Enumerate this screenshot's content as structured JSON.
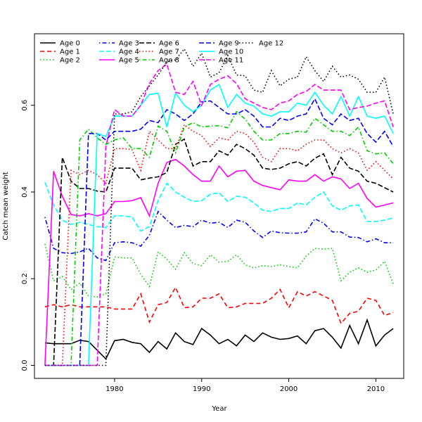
{
  "chart_data": {
    "type": "line",
    "xlabel": "Year",
    "ylabel": "Catch mean weight",
    "xlim": [
      1970.8,
      2013.2
    ],
    "ylim": [
      -0.03,
      0.765
    ],
    "xticks": [
      1980,
      1990,
      2000,
      2010
    ],
    "yticks": [
      0.0,
      0.2,
      0.4,
      0.6
    ],
    "legend_position": "top-left",
    "x": [
      1972,
      1973,
      1974,
      1975,
      1976,
      1977,
      1978,
      1979,
      1980,
      1981,
      1982,
      1983,
      1984,
      1985,
      1986,
      1987,
      1988,
      1989,
      1990,
      1991,
      1992,
      1993,
      1994,
      1995,
      1996,
      1997,
      1998,
      1999,
      2000,
      2001,
      2002,
      2003,
      2004,
      2005,
      2006,
      2007,
      2008,
      2009,
      2010,
      2011,
      2012
    ],
    "series": [
      {
        "name": "Age 0",
        "color": "#000000",
        "dash": "solid",
        "values": [
          0.052,
          0.05,
          0.05,
          0.05,
          0.058,
          0.055,
          0.035,
          0.015,
          0.057,
          0.06,
          0.053,
          0.05,
          0.03,
          0.055,
          0.038,
          0.075,
          0.055,
          0.048,
          0.085,
          0.07,
          0.05,
          0.06,
          0.045,
          0.07,
          0.055,
          0.075,
          0.065,
          0.06,
          0.062,
          0.068,
          0.05,
          0.08,
          0.085,
          0.065,
          0.04,
          0.092,
          0.05,
          0.105,
          0.045,
          0.07,
          0.085
        ]
      },
      {
        "name": "Age 1",
        "color": "#ff0000",
        "dash": "dashed",
        "values": [
          0.135,
          0.14,
          0.135,
          0.14,
          0.135,
          0.135,
          0.135,
          0.135,
          0.13,
          0.13,
          0.13,
          0.165,
          0.1,
          0.14,
          0.145,
          0.18,
          0.133,
          0.135,
          0.155,
          0.155,
          0.165,
          0.133,
          0.135,
          0.143,
          0.143,
          0.143,
          0.155,
          0.175,
          0.133,
          0.17,
          0.16,
          0.17,
          0.16,
          0.15,
          0.097,
          0.12,
          0.125,
          0.155,
          0.15,
          0.115,
          0.122
        ]
      },
      {
        "name": "Age 2",
        "color": "#00cd00",
        "dash": "dotted",
        "values": [
          0.28,
          0.195,
          0.205,
          0.175,
          0.19,
          0.16,
          0.158,
          0.165,
          0.25,
          0.248,
          0.248,
          0.21,
          0.182,
          0.262,
          0.245,
          0.222,
          0.26,
          0.235,
          0.23,
          0.255,
          0.238,
          0.24,
          0.255,
          0.232,
          0.225,
          0.23,
          0.228,
          0.232,
          0.228,
          0.225,
          0.252,
          0.27,
          0.268,
          0.27,
          0.195,
          0.215,
          0.225,
          0.215,
          0.22,
          0.24,
          0.188
        ]
      },
      {
        "name": "Age 3",
        "color": "#0000ff",
        "dash": "dashdot",
        "values": [
          0.342,
          0.27,
          0.26,
          0.258,
          0.262,
          0.27,
          0.248,
          0.242,
          0.283,
          0.285,
          0.283,
          0.275,
          0.3,
          0.355,
          0.335,
          0.318,
          0.323,
          0.32,
          0.335,
          0.328,
          0.33,
          0.318,
          0.335,
          0.33,
          0.31,
          0.295,
          0.31,
          0.306,
          0.305,
          0.305,
          0.308,
          0.338,
          0.328,
          0.308,
          0.308,
          0.296,
          0.295,
          0.285,
          0.292,
          0.283,
          0.283
        ]
      },
      {
        "name": "Age 4",
        "color": "#00ffff",
        "dash": "longdash",
        "values": [
          0.422,
          0.37,
          0.335,
          0.325,
          0.33,
          0.325,
          0.32,
          0.318,
          0.345,
          0.345,
          0.342,
          0.31,
          0.32,
          0.38,
          0.42,
          0.4,
          0.388,
          0.378,
          0.38,
          0.395,
          0.398,
          0.378,
          0.39,
          0.388,
          0.375,
          0.358,
          0.355,
          0.362,
          0.362,
          0.375,
          0.37,
          0.388,
          0.4,
          0.368,
          0.358,
          0.368,
          0.37,
          0.332,
          0.332,
          0.335,
          0.34
        ]
      },
      {
        "name": "Age 5",
        "color": "#ff00ff",
        "dash": "solid",
        "values": [
          0.0,
          0.448,
          0.39,
          0.348,
          0.345,
          0.35,
          0.345,
          0.35,
          0.378,
          0.378,
          0.38,
          0.387,
          0.345,
          0.42,
          0.468,
          0.475,
          0.46,
          0.44,
          0.425,
          0.425,
          0.46,
          0.435,
          0.448,
          0.45,
          0.425,
          0.415,
          0.41,
          0.405,
          0.428,
          0.425,
          0.425,
          0.44,
          0.425,
          0.435,
          0.43,
          0.408,
          0.42,
          0.385,
          0.365,
          0.37,
          0.375
        ]
      },
      {
        "name": "Age 6",
        "color": "#000000",
        "dash": "longdash",
        "values": [
          0.0,
          0.0,
          0.48,
          0.425,
          0.408,
          0.408,
          0.402,
          0.4,
          0.455,
          0.455,
          0.455,
          0.428,
          0.432,
          0.435,
          0.445,
          0.51,
          0.522,
          0.46,
          0.47,
          0.47,
          0.495,
          0.485,
          0.51,
          0.5,
          0.485,
          0.455,
          0.452,
          0.455,
          0.465,
          0.47,
          0.46,
          0.478,
          0.488,
          0.44,
          0.48,
          0.455,
          0.448,
          0.425,
          0.42,
          0.41,
          0.4
        ]
      },
      {
        "name": "Age 7",
        "color": "#ff0000",
        "dash": "dotted",
        "values": [
          0.0,
          0.0,
          0.0,
          0.45,
          0.44,
          0.45,
          0.44,
          0.42,
          0.5,
          0.5,
          0.498,
          0.45,
          0.54,
          0.52,
          0.5,
          0.5,
          0.555,
          0.54,
          0.53,
          0.505,
          0.525,
          0.52,
          0.54,
          0.535,
          0.515,
          0.48,
          0.47,
          0.5,
          0.5,
          0.495,
          0.51,
          0.52,
          0.52,
          0.5,
          0.49,
          0.5,
          0.49,
          0.45,
          0.47,
          0.45,
          0.43
        ]
      },
      {
        "name": "Age 8",
        "color": "#00cd00",
        "dash": "dashdot",
        "values": [
          0.0,
          0.0,
          0.0,
          0.0,
          0.52,
          0.545,
          0.525,
          0.51,
          0.52,
          0.525,
          0.5,
          0.5,
          0.48,
          0.552,
          0.54,
          0.49,
          0.55,
          0.56,
          0.55,
          0.552,
          0.553,
          0.548,
          0.585,
          0.568,
          0.54,
          0.52,
          0.52,
          0.535,
          0.535,
          0.54,
          0.538,
          0.57,
          0.555,
          0.54,
          0.54,
          0.53,
          0.55,
          0.495,
          0.488,
          0.49,
          0.465
        ]
      },
      {
        "name": "Age 9",
        "color": "#0000ff",
        "dash": "longdash",
        "values": [
          0.0,
          0.0,
          0.0,
          0.0,
          0.0,
          0.535,
          0.535,
          0.52,
          0.54,
          0.54,
          0.54,
          0.545,
          0.565,
          0.56,
          0.59,
          0.58,
          0.565,
          0.58,
          0.608,
          0.61,
          0.595,
          0.58,
          0.58,
          0.59,
          0.575,
          0.55,
          0.55,
          0.57,
          0.565,
          0.575,
          0.58,
          0.615,
          0.57,
          0.555,
          0.58,
          0.565,
          0.57,
          0.535,
          0.515,
          0.54,
          0.505
        ]
      },
      {
        "name": "Age 10",
        "color": "#00ffff",
        "dash": "solid",
        "values": [
          0.0,
          0.0,
          0.0,
          0.0,
          0.0,
          0.0,
          0.535,
          0.528,
          0.575,
          0.575,
          0.575,
          0.6,
          0.625,
          0.628,
          0.55,
          0.628,
          0.6,
          0.585,
          0.6,
          0.635,
          0.648,
          0.595,
          0.625,
          0.605,
          0.598,
          0.58,
          0.575,
          0.585,
          0.585,
          0.605,
          0.6,
          0.63,
          0.6,
          0.58,
          0.62,
          0.575,
          0.62,
          0.575,
          0.57,
          0.575,
          0.535
        ]
      },
      {
        "name": "Age 11",
        "color": "#ff00ff",
        "dash": "longdash",
        "values": [
          0.0,
          0.0,
          0.0,
          0.0,
          0.0,
          0.0,
          0.0,
          0.505,
          0.59,
          0.575,
          0.575,
          0.6,
          0.65,
          0.68,
          0.695,
          0.63,
          0.625,
          0.655,
          0.6,
          0.648,
          0.66,
          0.668,
          0.65,
          0.615,
          0.605,
          0.595,
          0.59,
          0.605,
          0.61,
          0.625,
          0.632,
          0.648,
          0.635,
          0.635,
          0.635,
          0.59,
          0.595,
          0.598,
          0.605,
          0.61,
          0.55
        ]
      },
      {
        "name": "Age 12",
        "color": "#000000",
        "dash": "dotted",
        "values": [
          0.0,
          0.0,
          0.0,
          0.0,
          0.0,
          0.0,
          0.0,
          0.0,
          0.58,
          0.58,
          0.585,
          0.62,
          0.645,
          0.67,
          0.7,
          0.705,
          0.73,
          0.69,
          0.72,
          0.665,
          0.675,
          0.715,
          0.67,
          0.668,
          0.635,
          0.63,
          0.68,
          0.645,
          0.66,
          0.665,
          0.712,
          0.68,
          0.655,
          0.69,
          0.665,
          0.67,
          0.66,
          0.63,
          0.63,
          0.665,
          0.58
        ]
      }
    ]
  }
}
